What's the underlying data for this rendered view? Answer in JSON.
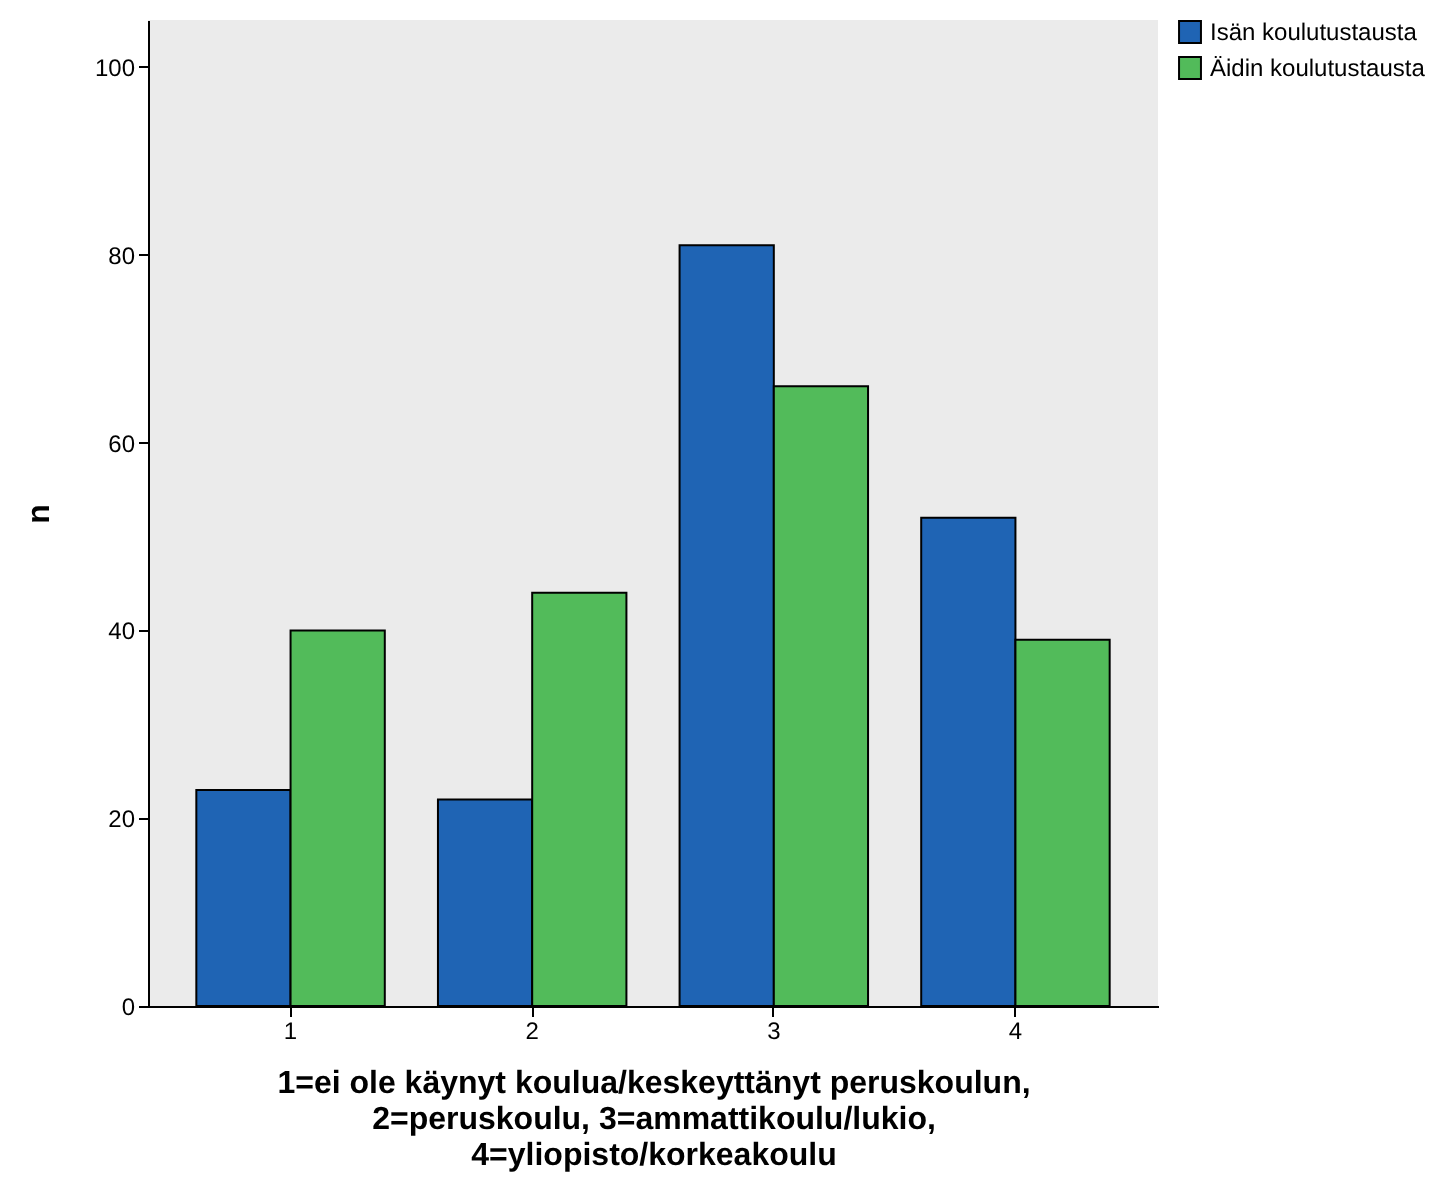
{
  "chart_data": {
    "type": "bar",
    "xlabel": "1=ei ole käynyt koulua/keskeyttänyt peruskoulun,\n2=peruskoulu, 3=ammattikoulu/lukio,\n4=yliopisto/korkeakoulu",
    "ylabel": "n",
    "categories": [
      "1",
      "2",
      "3",
      "4"
    ],
    "series": [
      {
        "name": "Isän koulutustausta",
        "color": "#1f64b4",
        "values": [
          23,
          22,
          81,
          52
        ]
      },
      {
        "name": "Äidin koulutustausta",
        "color": "#52bb5a",
        "values": [
          40,
          44,
          66,
          39
        ]
      }
    ],
    "ylim": [
      0,
      105
    ],
    "yticks": [
      0,
      20,
      40,
      60,
      80,
      100
    ],
    "grid": false,
    "legend": "top right"
  }
}
